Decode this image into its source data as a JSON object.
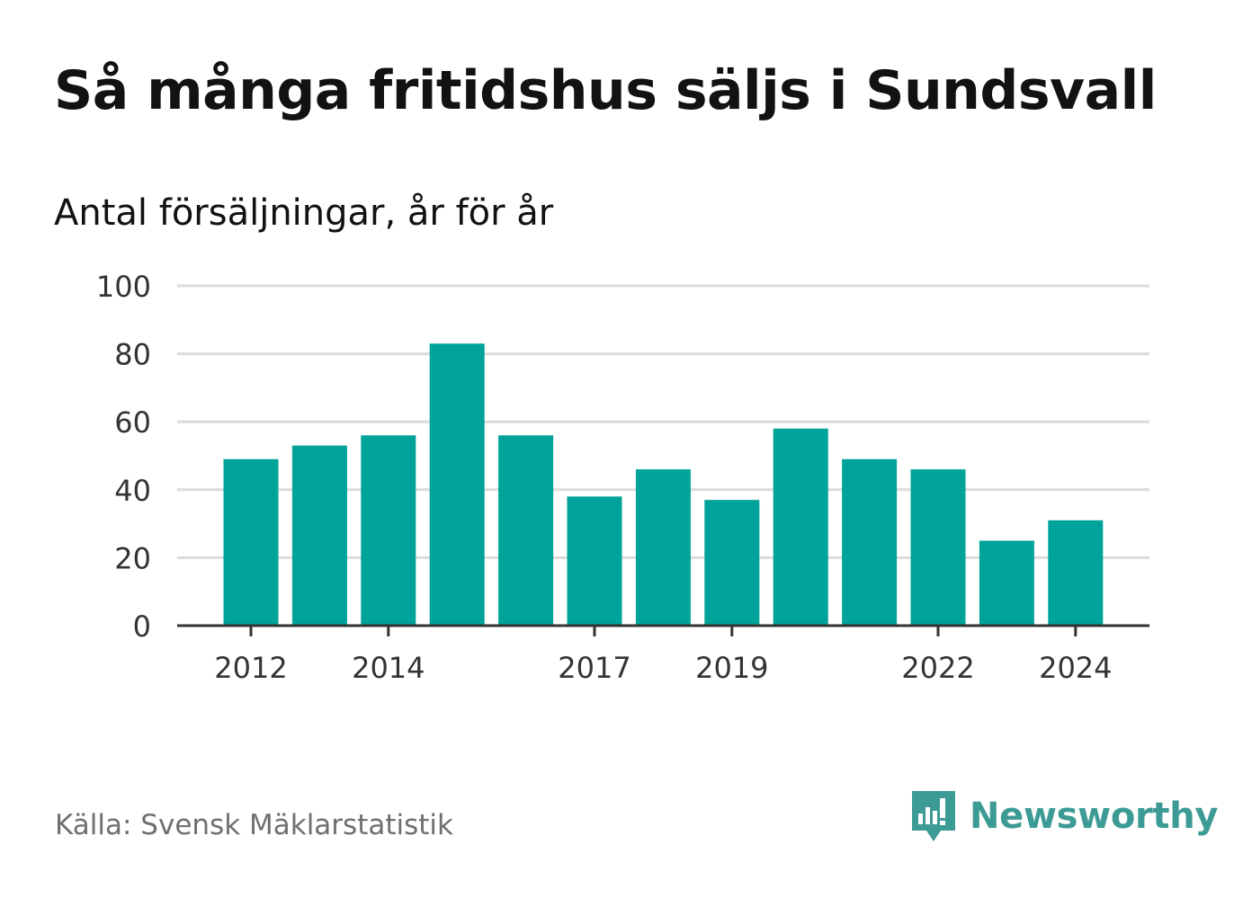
{
  "title": "Så många fritidshus säljs i Sundsvall",
  "subtitle": "Antal försäljningar, år för år",
  "source": "Källa: Svensk Mäklarstatistik",
  "brand": {
    "name": "Newsworthy",
    "icon": "newsworthy-logo-icon",
    "color": "#3d9b95"
  },
  "colors": {
    "bar": "#00a39a",
    "grid": "#dcdcdc",
    "axis": "#333333"
  },
  "chart_data": {
    "type": "bar",
    "categories": [
      "2012",
      "2013",
      "2014",
      "2015",
      "2016",
      "2017",
      "2018",
      "2019",
      "2020",
      "2021",
      "2022",
      "2023",
      "2024"
    ],
    "values": [
      49,
      53,
      56,
      83,
      56,
      38,
      46,
      37,
      58,
      49,
      46,
      25,
      31
    ],
    "x_tick_labels": [
      "2012",
      "2014",
      "2017",
      "2019",
      "2022",
      "2024"
    ],
    "y_ticks": [
      0,
      20,
      40,
      60,
      80,
      100
    ],
    "ylim": [
      0,
      100
    ],
    "grid": true,
    "legend": "none"
  }
}
